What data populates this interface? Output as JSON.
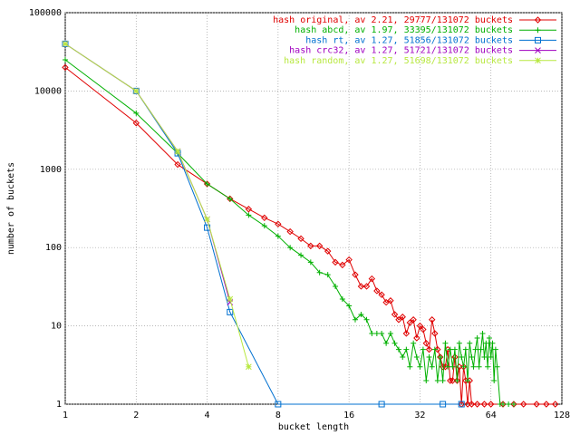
{
  "chart_data": {
    "type": "line",
    "xlabel": "bucket length",
    "ylabel": "number of buckets",
    "xscale": "log2",
    "yscale": "log",
    "grid": true,
    "legend": "top-right",
    "xlim": [
      1,
      128
    ],
    "xticks": [
      1,
      2,
      4,
      8,
      16,
      32,
      64,
      128
    ],
    "ylim": [
      1,
      100000
    ],
    "yticks": [
      1,
      10,
      100,
      1000,
      10000,
      100000
    ],
    "series": [
      {
        "name": "hash original, av 2.21, 29777/131072 buckets",
        "color": "#e00000",
        "marker": "diamond",
        "x": [
          1,
          2,
          3,
          4,
          5,
          6,
          7,
          8,
          9,
          10,
          11,
          12,
          13,
          14,
          15,
          16,
          17,
          18,
          19,
          20,
          21,
          22,
          23,
          24,
          25,
          26,
          27,
          28,
          29,
          30,
          31,
          32,
          33,
          34,
          35,
          36,
          37,
          38,
          39,
          40,
          41,
          42,
          43,
          44,
          45,
          46,
          47,
          48,
          49,
          50,
          51,
          52,
          53,
          56,
          60,
          64,
          72,
          80,
          88,
          100,
          110,
          120
        ],
        "values": [
          20000,
          3900,
          1150,
          650,
          420,
          310,
          240,
          200,
          160,
          130,
          105,
          105,
          90,
          65,
          60,
          70,
          45,
          32,
          32,
          40,
          28,
          25,
          20,
          21,
          14,
          12,
          13,
          8,
          11,
          12,
          7,
          10,
          9,
          6,
          5,
          12,
          8,
          5,
          4,
          3,
          3,
          5,
          2,
          2,
          4,
          2,
          3,
          1,
          3,
          2,
          1,
          2,
          1,
          1,
          1,
          1,
          1,
          1,
          1,
          1,
          1,
          1
        ]
      },
      {
        "name": "hash abcd, av 1.97, 33395/131072 buckets",
        "color": "#00b000",
        "marker": "plus",
        "x": [
          1,
          2,
          3,
          4,
          5,
          6,
          7,
          8,
          9,
          10,
          11,
          12,
          13,
          14,
          15,
          16,
          17,
          18,
          19,
          20,
          21,
          22,
          23,
          24,
          25,
          26,
          27,
          28,
          29,
          30,
          31,
          32,
          33,
          34,
          35,
          36,
          37,
          38,
          39,
          40,
          41,
          42,
          43,
          44,
          45,
          46,
          47,
          48,
          49,
          50,
          51,
          52,
          53,
          54,
          55,
          56,
          57,
          58,
          59,
          60,
          61,
          62,
          63,
          64,
          65,
          66,
          67,
          68,
          70,
          72,
          76,
          80
        ],
        "values": [
          25000,
          5200,
          1600,
          650,
          420,
          260,
          190,
          140,
          100,
          80,
          65,
          48,
          45,
          32,
          22,
          18,
          12,
          14,
          12,
          8,
          8,
          8,
          6,
          8,
          6,
          5,
          4,
          5,
          3,
          6,
          4,
          3,
          5,
          2,
          4,
          3,
          5,
          2,
          4,
          2,
          6,
          3,
          5,
          3,
          5,
          2,
          6,
          4,
          3,
          5,
          2,
          6,
          4,
          3,
          5,
          7,
          3,
          5,
          8,
          4,
          6,
          3,
          7,
          4,
          6,
          2,
          5,
          3,
          1,
          1,
          1,
          1
        ]
      },
      {
        "name": "hash rt, av 1.27, 51856/131072 buckets",
        "color": "#0070d0",
        "marker": "square",
        "x": [
          1,
          2,
          3,
          4,
          5,
          8,
          22,
          40,
          48
        ],
        "values": [
          40000,
          10000,
          1600,
          180,
          15,
          1,
          1,
          1,
          1
        ]
      },
      {
        "name": "hash crc32, av 1.27, 51721/131072 buckets",
        "color": "#a000c0",
        "marker": "cross",
        "x": [
          1,
          2,
          3,
          4,
          5
        ],
        "values": [
          40000,
          10000,
          1700,
          230,
          20
        ]
      },
      {
        "name": "hash random, av 1.27, 51698/131072 buckets",
        "color": "#b8e840",
        "marker": "star",
        "x": [
          1,
          2,
          3,
          4,
          5,
          6
        ],
        "values": [
          40000,
          10000,
          1700,
          230,
          22,
          3
        ]
      }
    ]
  }
}
